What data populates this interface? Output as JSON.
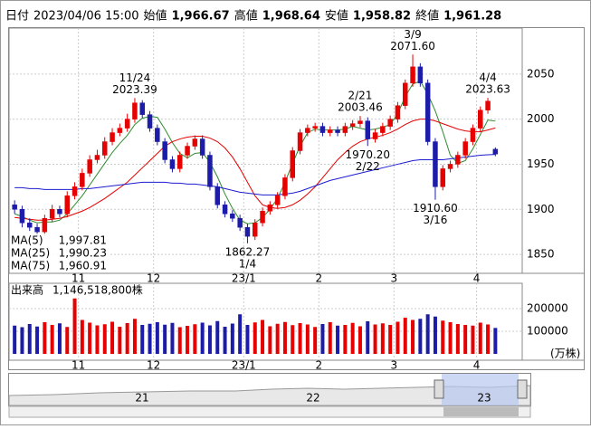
{
  "header": {
    "date_label": "日付",
    "datetime": "2023/04/06 15:00",
    "items": [
      {
        "label": "始値",
        "value": "1,966.67",
        "color": "#000"
      },
      {
        "label": "高値",
        "value": "1,968.64",
        "color": "#e00000"
      },
      {
        "label": "安値",
        "value": "1,958.82",
        "color": "#008000"
      },
      {
        "label": "終値",
        "value": "1,961.28",
        "color": "#000"
      }
    ]
  },
  "chart_data": {
    "type": "candlestick",
    "categories": [
      null,
      null,
      null,
      null,
      null,
      null,
      null,
      null,
      null,
      "11",
      null,
      null,
      null,
      null,
      null,
      null,
      null,
      null,
      null,
      "12",
      null,
      null,
      null,
      null,
      null,
      null,
      null,
      null,
      null,
      null,
      null,
      "23/1",
      null,
      null,
      null,
      null,
      null,
      null,
      null,
      null,
      null,
      "2",
      null,
      null,
      null,
      null,
      null,
      null,
      null,
      null,
      null,
      "3",
      null,
      null,
      null,
      null,
      null,
      null,
      null,
      null,
      null,
      null,
      "4",
      null,
      null
    ],
    "open": [
      1905,
      1900,
      1885,
      1880,
      1875,
      1890,
      1900,
      1895,
      1915,
      1925,
      1940,
      1955,
      1960,
      1975,
      1985,
      1990,
      2000,
      2018,
      2005,
      1990,
      1975,
      1955,
      1945,
      1960,
      1970,
      1978,
      1960,
      1925,
      1905,
      1895,
      1890,
      1880,
      1870,
      1885,
      1898,
      1905,
      1915,
      1935,
      1965,
      1985,
      1990,
      1992,
      1985,
      1988,
      1985,
      1992,
      1995,
      1998,
      1978,
      1985,
      1992,
      2000,
      2015,
      2040,
      2058,
      2040,
      1975,
      1925,
      1945,
      1950,
      1960,
      1975,
      1990,
      2010,
      1966.67
    ],
    "high": [
      1910,
      1904,
      1890,
      1884,
      1894,
      1905,
      1904,
      1920,
      1930,
      1945,
      1960,
      1966,
      1980,
      1990,
      1995,
      2006,
      2023.39,
      2021,
      2009,
      1994,
      1979,
      1959,
      1964,
      1974,
      1982,
      1982,
      1964,
      1929,
      1909,
      1899,
      1894,
      1884,
      1889,
      1902,
      1909,
      1919,
      1939,
      1969,
      1989,
      1994,
      1996,
      1996,
      1992,
      1992,
      1996,
      1999,
      2003.46,
      2002,
      1989,
      1996,
      2004,
      2019,
      2044,
      2071.6,
      2062,
      2044,
      1979,
      1949,
      1954,
      1964,
      1979,
      1994,
      2014,
      2023.63,
      1968.64
    ],
    "low": [
      1895,
      1880,
      1876,
      1870,
      1871,
      1886,
      1891,
      1891,
      1911,
      1921,
      1936,
      1951,
      1956,
      1971,
      1981,
      1986,
      1996,
      2001,
      1986,
      1971,
      1951,
      1941,
      1941,
      1956,
      1966,
      1956,
      1921,
      1901,
      1891,
      1886,
      1876,
      1862.27,
      1866,
      1881,
      1894,
      1901,
      1911,
      1931,
      1961,
      1981,
      1986,
      1981,
      1981,
      1981,
      1981,
      1988,
      1991,
      1970.2,
      1974,
      1981,
      1988,
      1996,
      2011,
      2036,
      2036,
      1971,
      1910.6,
      1921,
      1941,
      1946,
      1956,
      1971,
      1986,
      2006,
      1958.82
    ],
    "close": [
      1900,
      1885,
      1880,
      1875,
      1890,
      1900,
      1895,
      1915,
      1925,
      1940,
      1955,
      1960,
      1975,
      1985,
      1990,
      2000,
      2018,
      2005,
      1990,
      1975,
      1955,
      1945,
      1960,
      1970,
      1978,
      1960,
      1925,
      1905,
      1895,
      1890,
      1880,
      1870,
      1885,
      1898,
      1905,
      1915,
      1935,
      1965,
      1985,
      1990,
      1992,
      1985,
      1988,
      1985,
      1992,
      1995,
      1998,
      1978,
      1985,
      1992,
      2000,
      2015,
      2040,
      2058,
      2040,
      1975,
      1925,
      1945,
      1950,
      1960,
      1975,
      1990,
      2010,
      2020,
      1961.28
    ],
    "up_color": "#e60000",
    "down_color": "#1c1ca8",
    "series": [
      {
        "name": "MA(5)",
        "last_label": "1,997.81",
        "color": "#2e8b2e",
        "values": [
          1895,
          1892,
          1888,
          1885,
          1886,
          1886,
          1888,
          1895,
          1905,
          1915,
          1927,
          1939,
          1951,
          1963,
          1973,
          1982,
          1994,
          2001,
          2003,
          2002,
          1989,
          1974,
          1962,
          1957,
          1962,
          1963,
          1952,
          1936,
          1917,
          1901,
          1888,
          1884,
          1885,
          1891,
          1900,
          1912,
          1930,
          1951,
          1970,
          1985,
          1989,
          1988,
          1988,
          1988,
          1989,
          1992,
          1990,
          1988,
          1989,
          1991,
          1994,
          2006,
          2025,
          2039,
          2042,
          2028,
          2009,
          1986,
          1960,
          1951,
          1954,
          1967,
          1983,
          1999,
          1997.81
        ]
      },
      {
        "name": "MA(25)",
        "last_label": "1,990.23",
        "color": "#e60000",
        "values": [
          1891,
          1890,
          1889,
          1888,
          1888,
          1889,
          1890,
          1892,
          1895,
          1898,
          1902,
          1907,
          1912,
          1918,
          1924,
          1930,
          1938,
          1946,
          1954,
          1962,
          1970,
          1975,
          1978,
          1980,
          1981,
          1981,
          1979,
          1975,
          1968,
          1958,
          1945,
          1930,
          1915,
          1905,
          1902,
          1901,
          1902,
          1905,
          1910,
          1917,
          1925,
          1935,
          1945,
          1955,
          1963,
          1970,
          1975,
          1978,
          1980,
          1982,
          1985,
          1989,
          1994,
          1998,
          2000,
          2000,
          1998,
          1995,
          1992,
          1989,
          1987,
          1986,
          1986,
          1988,
          1990.23
        ]
      },
      {
        "name": "MA(75)",
        "last_label": "1,960.91",
        "color": "#1c1cd0",
        "values": [
          1924,
          1924,
          1923,
          1923,
          1922,
          1922,
          1922,
          1922,
          1922,
          1923,
          1923,
          1924,
          1925,
          1926,
          1927,
          1928,
          1929,
          1930,
          1930,
          1930,
          1930,
          1929,
          1929,
          1928,
          1928,
          1927,
          1926,
          1925,
          1923,
          1921,
          1919,
          1918,
          1917,
          1916,
          1916,
          1916,
          1917,
          1918,
          1920,
          1923,
          1926,
          1929,
          1932,
          1934,
          1936,
          1938,
          1940,
          1942,
          1944,
          1946,
          1948,
          1950,
          1952,
          1954,
          1955,
          1955,
          1955,
          1955,
          1956,
          1957,
          1958,
          1959,
          1960,
          1960.5,
          1960.91
        ]
      }
    ],
    "ylim": [
      1829,
      2101
    ],
    "yticks": [
      1850,
      1900,
      1950,
      2000,
      2050
    ],
    "annotations": [
      {
        "date": "11/24",
        "value": 2023.39
      },
      {
        "date": "1/4",
        "value": 1862.27
      },
      {
        "date": "2/21",
        "value": 2003.46
      },
      {
        "date": "2/22",
        "value": 1970.2,
        "label": "1970.20"
      },
      {
        "date": "3/9",
        "value": 2071.6,
        "label": "2071.60"
      },
      {
        "date": "3/16",
        "value": 1910.6,
        "label": "1910.60"
      },
      {
        "date": "4/4",
        "value": 2023.63
      }
    ],
    "volume": {
      "title": "出来高",
      "total": "1,146,518,800株",
      "unit": "(万株)",
      "ylim": [
        0,
        312000
      ],
      "yticks": [
        100000,
        200000
      ],
      "values": [
        125000,
        118000,
        132000,
        121000,
        140000,
        128000,
        135000,
        119000,
        245000,
        150000,
        138000,
        126000,
        131000,
        142000,
        120000,
        136000,
        155000,
        128000,
        133000,
        140000,
        129000,
        137000,
        118000,
        124000,
        131000,
        138000,
        126000,
        145000,
        120000,
        134000,
        175000,
        128000,
        139000,
        150000,
        122000,
        133000,
        141000,
        127000,
        136000,
        130000,
        119000,
        132000,
        140000,
        125000,
        128000,
        137000,
        122000,
        144000,
        130000,
        135000,
        128000,
        142000,
        160000,
        150000,
        155000,
        175000,
        165000,
        147000,
        140000,
        132000,
        128000,
        125000,
        138000,
        130000,
        114651.88
      ]
    },
    "navigator": {
      "labels": [
        "21",
        "22",
        "23"
      ]
    }
  }
}
